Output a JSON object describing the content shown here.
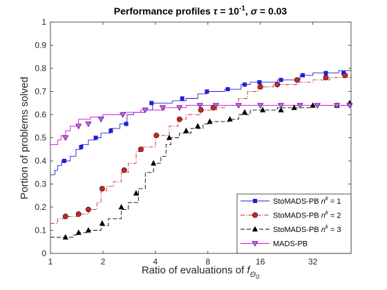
{
  "chart_data": {
    "type": "line",
    "title": "Performance profiles τ = 10^-1, σ = 0.03",
    "title_parts": {
      "prefix": "Performance profiles ",
      "tau_symbol": "τ",
      "tau_eq": " = 10",
      "tau_exp": "-1",
      "sep": ", ",
      "sigma_symbol": "σ",
      "sigma_eq": " = 0.03"
    },
    "xlabel": "Ratio of evaluations of f",
    "xlabel_parts": {
      "text": "Ratio of evaluations of ",
      "f": "f",
      "sub": "Θ",
      "subsub": "0"
    },
    "ylabel": "Portion of problems solved",
    "xscale": "log2",
    "xlim": [
      1,
      53
    ],
    "ylim": [
      0,
      1
    ],
    "xticks": [
      1,
      2,
      4,
      8,
      16,
      32
    ],
    "xtick_labels": [
      "1",
      "2",
      "4",
      "8",
      "16",
      "32"
    ],
    "yticks": [
      0,
      0.1,
      0.2,
      0.3,
      0.4,
      0.5,
      0.6,
      0.7,
      0.8,
      0.9,
      1
    ],
    "ytick_labels": [
      "0",
      "0.1",
      "0.2",
      "0.3",
      "0.4",
      "0.5",
      "0.6",
      "0.7",
      "0.8",
      "0.9",
      "1"
    ],
    "grid": false,
    "legend_position": "bottom-right",
    "series": [
      {
        "name": "StoMADS-PB n^k = 1",
        "label_parts": {
          "prefix": "StoMADS-PB ",
          "n": "n",
          "k": "k",
          "suffix": " = 1"
        },
        "color": "#1f1fd6",
        "dash": "",
        "marker": "square",
        "marker_fill": "#1f1fd6",
        "points": [
          [
            1,
            0.34
          ],
          [
            1.06,
            0.36
          ],
          [
            1.1,
            0.38
          ],
          [
            1.16,
            0.4
          ],
          [
            1.3,
            0.42
          ],
          [
            1.4,
            0.45
          ],
          [
            1.5,
            0.47
          ],
          [
            1.65,
            0.49
          ],
          [
            1.8,
            0.5
          ],
          [
            1.95,
            0.52
          ],
          [
            2.2,
            0.54
          ],
          [
            2.5,
            0.56
          ],
          [
            2.75,
            0.6
          ],
          [
            3.0,
            0.61
          ],
          [
            3.5,
            0.62
          ],
          [
            3.85,
            0.65
          ],
          [
            5,
            0.66
          ],
          [
            6.0,
            0.67
          ],
          [
            7.0,
            0.69
          ],
          [
            7.9,
            0.7
          ],
          [
            10,
            0.71
          ],
          [
            12.4,
            0.73
          ],
          [
            14,
            0.74
          ],
          [
            16,
            0.74
          ],
          [
            20,
            0.75
          ],
          [
            27,
            0.77
          ],
          [
            32,
            0.78
          ],
          [
            45,
            0.79
          ],
          [
            53,
            0.79
          ]
        ],
        "markers": [
          [
            1.2,
            0.4
          ],
          [
            1.5,
            0.46
          ],
          [
            1.82,
            0.5
          ],
          [
            2.22,
            0.53
          ],
          [
            2.72,
            0.56
          ],
          [
            3.8,
            0.65
          ],
          [
            5.7,
            0.67
          ],
          [
            7.9,
            0.7
          ],
          [
            10.4,
            0.71
          ],
          [
            13,
            0.73
          ],
          [
            15.8,
            0.74
          ],
          [
            21,
            0.75
          ],
          [
            28,
            0.77
          ],
          [
            38,
            0.78
          ],
          [
            48,
            0.78
          ]
        ]
      },
      {
        "name": "StoMADS-PB n^k = 2",
        "label_parts": {
          "prefix": "StoMADS-PB ",
          "n": "n",
          "k": "k",
          "suffix": " = 2"
        },
        "color": "#d81f1f",
        "dash": "6,2,1.5,2",
        "marker": "circle",
        "marker_fill": "#d81f1f",
        "points": [
          [
            1,
            0.13
          ],
          [
            1.1,
            0.15
          ],
          [
            1.22,
            0.16
          ],
          [
            1.45,
            0.17
          ],
          [
            1.65,
            0.19
          ],
          [
            1.85,
            0.22
          ],
          [
            1.95,
            0.27
          ],
          [
            2.1,
            0.29
          ],
          [
            2.3,
            0.31
          ],
          [
            2.55,
            0.35
          ],
          [
            2.8,
            0.39
          ],
          [
            3.1,
            0.44
          ],
          [
            3.4,
            0.46
          ],
          [
            4.0,
            0.51
          ],
          [
            4.8,
            0.55
          ],
          [
            5.4,
            0.58
          ],
          [
            6.0,
            0.6
          ],
          [
            7.3,
            0.62
          ],
          [
            8.0,
            0.62
          ],
          [
            9.0,
            0.63
          ],
          [
            10,
            0.64
          ],
          [
            12,
            0.67
          ],
          [
            13.5,
            0.7
          ],
          [
            15.5,
            0.72
          ],
          [
            19,
            0.73
          ],
          [
            26,
            0.74
          ],
          [
            32,
            0.75
          ],
          [
            40,
            0.76
          ],
          [
            53,
            0.77
          ]
        ],
        "markers": [
          [
            1.22,
            0.16
          ],
          [
            1.45,
            0.17
          ],
          [
            1.65,
            0.19
          ],
          [
            1.98,
            0.28
          ],
          [
            2.65,
            0.36
          ],
          [
            3.3,
            0.45
          ],
          [
            4.05,
            0.51
          ],
          [
            5.5,
            0.58
          ],
          [
            7.3,
            0.62
          ],
          [
            8.6,
            0.63
          ],
          [
            16,
            0.72
          ],
          [
            20,
            0.73
          ],
          [
            26,
            0.75
          ],
          [
            38,
            0.76
          ],
          [
            49,
            0.77
          ]
        ]
      },
      {
        "name": "StoMADS-PB n^k = 3",
        "label_parts": {
          "prefix": "StoMADS-PB ",
          "n": "n",
          "k": "k",
          "suffix": " = 3"
        },
        "color": "#000000",
        "dash": "6,3",
        "marker": "triangle-up",
        "marker_fill": "#000000",
        "points": [
          [
            1,
            0.07
          ],
          [
            1.2,
            0.07
          ],
          [
            1.35,
            0.08
          ],
          [
            1.45,
            0.09
          ],
          [
            1.65,
            0.1
          ],
          [
            1.95,
            0.12
          ],
          [
            2.15,
            0.15
          ],
          [
            2.55,
            0.19
          ],
          [
            2.8,
            0.22
          ],
          [
            3.2,
            0.28
          ],
          [
            3.5,
            0.35
          ],
          [
            3.9,
            0.39
          ],
          [
            4.3,
            0.42
          ],
          [
            4.6,
            0.47
          ],
          [
            4.9,
            0.5
          ],
          [
            5.5,
            0.52
          ],
          [
            6.4,
            0.54
          ],
          [
            7.5,
            0.56
          ],
          [
            8.3,
            0.57
          ],
          [
            10.5,
            0.58
          ],
          [
            12,
            0.6
          ],
          [
            14,
            0.62
          ],
          [
            16,
            0.62
          ],
          [
            20,
            0.63
          ],
          [
            25,
            0.63
          ],
          [
            32,
            0.64
          ],
          [
            40,
            0.64
          ],
          [
            46,
            0.64
          ],
          [
            53,
            0.65
          ]
        ],
        "markers": [
          [
            1.22,
            0.07
          ],
          [
            1.45,
            0.09
          ],
          [
            1.65,
            0.1
          ],
          [
            1.98,
            0.13
          ],
          [
            2.55,
            0.2
          ],
          [
            3.1,
            0.26
          ],
          [
            3.9,
            0.39
          ],
          [
            4.8,
            0.5
          ],
          [
            6.0,
            0.53
          ],
          [
            7.0,
            0.55
          ],
          [
            8.2,
            0.57
          ],
          [
            10.7,
            0.58
          ],
          [
            13,
            0.61
          ],
          [
            16.5,
            0.62
          ],
          [
            21,
            0.62
          ],
          [
            25,
            0.63
          ],
          [
            32,
            0.64
          ],
          [
            44,
            0.64
          ],
          [
            52,
            0.65
          ]
        ]
      },
      {
        "name": "MADS-PB",
        "color": "#e000e0",
        "dash": "",
        "marker": "triangle-down",
        "marker_fill": "#9a7fc9",
        "points": [
          [
            1,
            0.47
          ],
          [
            1.05,
            0.47
          ],
          [
            1.1,
            0.49
          ],
          [
            1.15,
            0.51
          ],
          [
            1.22,
            0.53
          ],
          [
            1.3,
            0.55
          ],
          [
            1.45,
            0.58
          ],
          [
            1.7,
            0.59
          ],
          [
            2.0,
            0.6
          ],
          [
            2.6,
            0.61
          ],
          [
            3.3,
            0.62
          ],
          [
            4.5,
            0.63
          ],
          [
            6,
            0.64
          ],
          [
            53,
            0.64
          ]
        ],
        "markers": [
          [
            1.22,
            0.5
          ],
          [
            1.45,
            0.55
          ],
          [
            1.65,
            0.56
          ],
          [
            1.95,
            0.58
          ],
          [
            2.6,
            0.6
          ],
          [
            3.5,
            0.62
          ],
          [
            4.4,
            0.63
          ],
          [
            5.5,
            0.63
          ],
          [
            7.2,
            0.64
          ],
          [
            8.9,
            0.64
          ],
          [
            12,
            0.64
          ],
          [
            16,
            0.64
          ],
          [
            21,
            0.64
          ],
          [
            27,
            0.64
          ],
          [
            34,
            0.64
          ],
          [
            44,
            0.64
          ],
          [
            52,
            0.64
          ]
        ]
      }
    ]
  }
}
